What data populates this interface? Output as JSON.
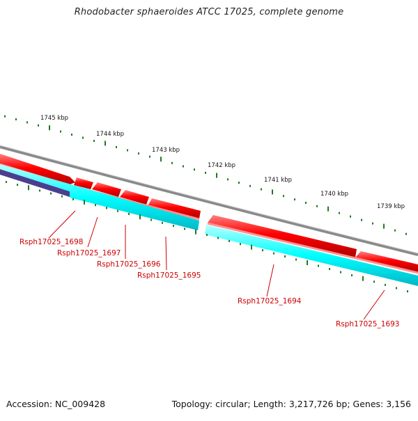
{
  "title": "Rhodobacter sphaeroides ATCC 17025, complete genome",
  "footer": {
    "accession": "Accession: NC_009428",
    "summary": "Topology: circular; Length: 3,217,726 bp; Genes: 3,156"
  },
  "colors": {
    "backbone": "#8a8a8a",
    "forward_gene": "#ff0000",
    "reverse_gene": "#00ffff",
    "other_feature": "#4a3f8f",
    "ticks": "#1e7a1e",
    "labels": "#cc0000"
  },
  "scale_labels": [
    "1745 kbp",
    "1744 kbp",
    "1743 kbp",
    "1742 kbp",
    "1741 kbp",
    "1740 kbp",
    "1739 kbp"
  ],
  "genes": [
    {
      "label": "Rsph17025_1698"
    },
    {
      "label": "Rsph17025_1697"
    },
    {
      "label": "Rsph17025_1696"
    },
    {
      "label": "Rsph17025_1695"
    },
    {
      "label": "Rsph17025_1694"
    },
    {
      "label": "Rsph17025_1693"
    }
  ]
}
